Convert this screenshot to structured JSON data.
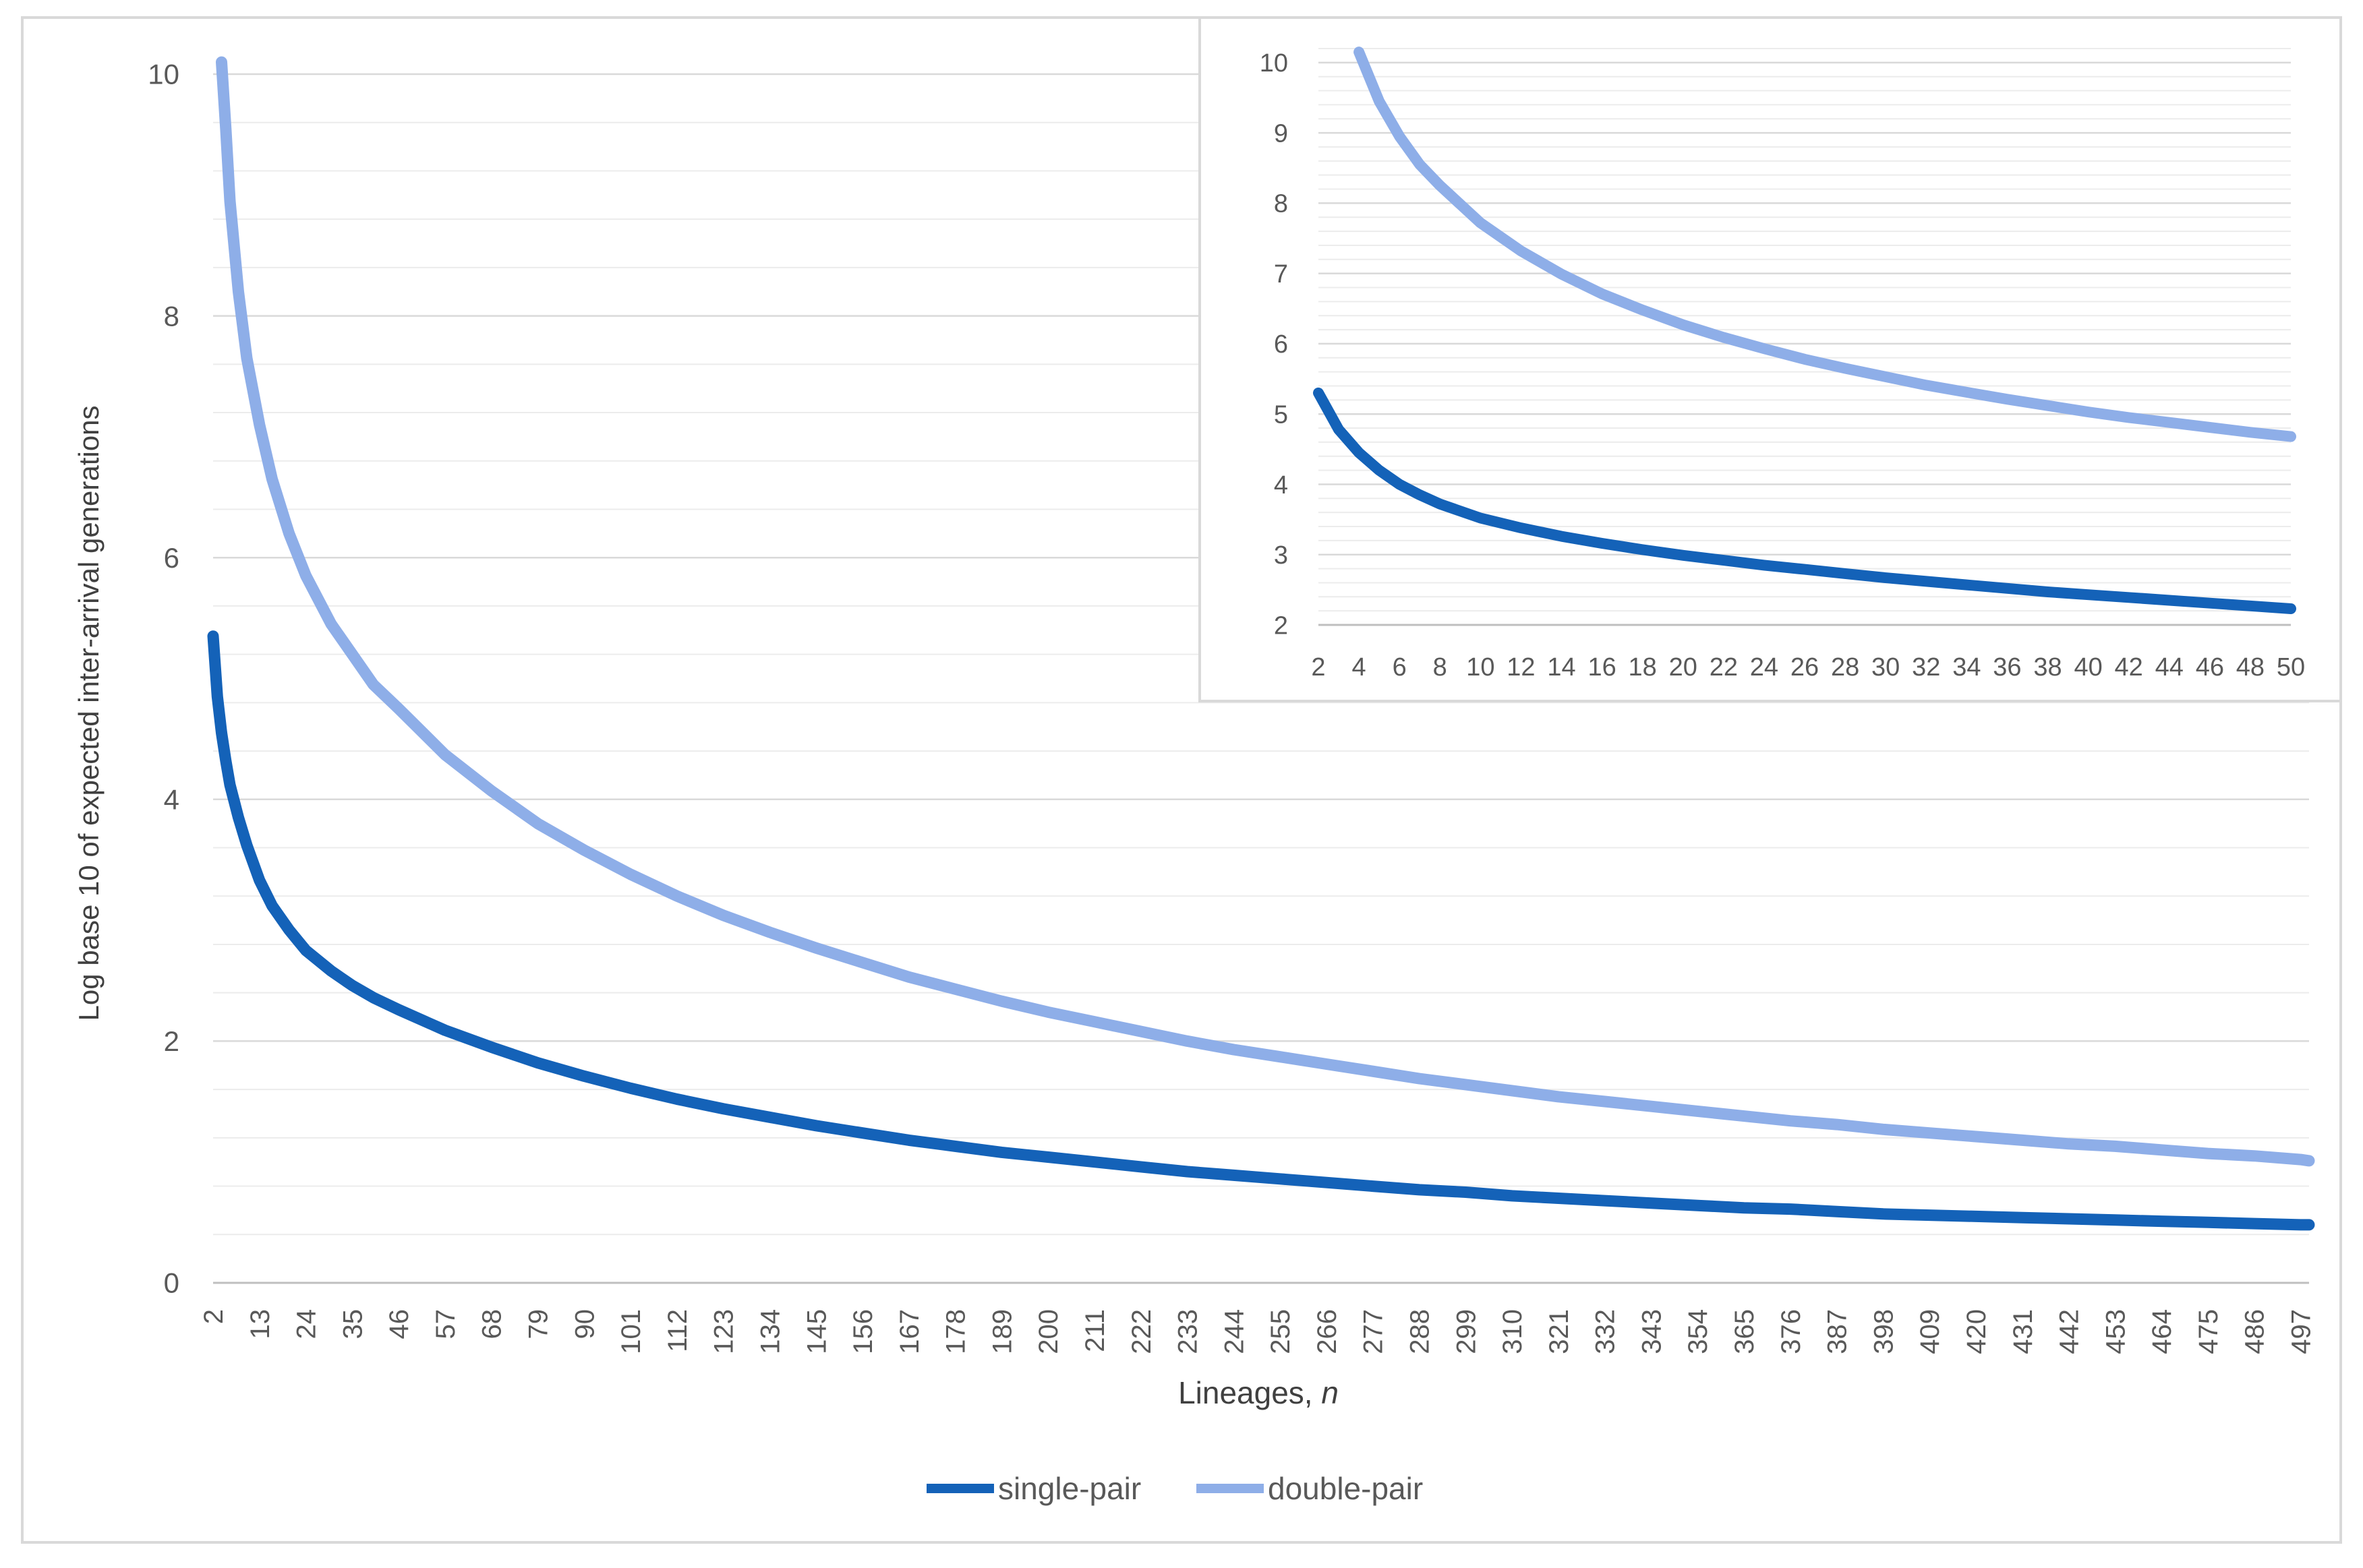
{
  "chart_data": [
    {
      "type": "line",
      "title": "",
      "xlabel": "Lineages, ",
      "xlabel_italic": "n",
      "ylabel": "Log base 10 of expected inter-arrival generations",
      "x_range": [
        2,
        499
      ],
      "ylim": [
        0,
        10
      ],
      "y_ticks": [
        "0",
        "2",
        "4",
        "6",
        "8",
        "10"
      ],
      "y_minor_step": 0.4,
      "x_tick_labels": [
        "2",
        "13",
        "24",
        "35",
        "46",
        "57",
        "68",
        "79",
        "90",
        "101",
        "112",
        "123",
        "134",
        "145",
        "156",
        "167",
        "178",
        "189",
        "200",
        "211",
        "222",
        "233",
        "244",
        "255",
        "266",
        "277",
        "288",
        "299",
        "310",
        "321",
        "332",
        "343",
        "354",
        "365",
        "376",
        "387",
        "398",
        "409",
        "420",
        "431",
        "442",
        "453",
        "464",
        "475",
        "486",
        "497"
      ],
      "grid": true,
      "legend_position": "bottom",
      "series": [
        {
          "name": "single-pair",
          "color": "#1462b8",
          "x": [
            2,
            3,
            4,
            5,
            6,
            8,
            10,
            13,
            16,
            20,
            24,
            30,
            35,
            40,
            46,
            57,
            68,
            79,
            90,
            101,
            112,
            123,
            134,
            145,
            156,
            167,
            178,
            189,
            200,
            211,
            222,
            233,
            244,
            255,
            266,
            277,
            288,
            299,
            310,
            321,
            332,
            343,
            354,
            365,
            376,
            387,
            398,
            409,
            420,
            431,
            442,
            453,
            464,
            475,
            486,
            497,
            499
          ],
          "values": [
            5.35,
            4.85,
            4.55,
            4.32,
            4.12,
            3.85,
            3.62,
            3.33,
            3.12,
            2.92,
            2.75,
            2.58,
            2.46,
            2.36,
            2.26,
            2.09,
            1.95,
            1.82,
            1.71,
            1.61,
            1.52,
            1.44,
            1.37,
            1.3,
            1.24,
            1.18,
            1.13,
            1.08,
            1.04,
            1.0,
            0.96,
            0.92,
            0.89,
            0.86,
            0.83,
            0.8,
            0.77,
            0.75,
            0.72,
            0.7,
            0.68,
            0.66,
            0.64,
            0.62,
            0.61,
            0.59,
            0.57,
            0.56,
            0.55,
            0.54,
            0.53,
            0.52,
            0.51,
            0.5,
            0.49,
            0.48,
            0.48
          ]
        },
        {
          "name": "double-pair",
          "color": "#8eaee8",
          "x": [
            4,
            5,
            6,
            8,
            10,
            13,
            16,
            20,
            24,
            30,
            35,
            40,
            46,
            57,
            68,
            79,
            90,
            101,
            112,
            123,
            134,
            145,
            156,
            167,
            178,
            189,
            200,
            211,
            222,
            233,
            244,
            255,
            266,
            277,
            288,
            299,
            310,
            321,
            332,
            343,
            354,
            365,
            376,
            387,
            398,
            409,
            420,
            431,
            442,
            453,
            464,
            475,
            486,
            497,
            499
          ],
          "values": [
            10.1,
            9.55,
            8.95,
            8.2,
            7.65,
            7.1,
            6.65,
            6.2,
            5.85,
            5.45,
            5.2,
            4.95,
            4.75,
            4.37,
            4.07,
            3.8,
            3.58,
            3.38,
            3.2,
            3.04,
            2.9,
            2.77,
            2.65,
            2.53,
            2.43,
            2.33,
            2.24,
            2.16,
            2.08,
            2.0,
            1.93,
            1.87,
            1.81,
            1.75,
            1.69,
            1.64,
            1.59,
            1.54,
            1.5,
            1.46,
            1.42,
            1.38,
            1.34,
            1.31,
            1.27,
            1.24,
            1.21,
            1.18,
            1.15,
            1.13,
            1.1,
            1.07,
            1.05,
            1.02,
            1.01
          ]
        }
      ]
    },
    {
      "type": "line",
      "title": "",
      "xlabel": "",
      "ylabel": "",
      "x_range": [
        2,
        50
      ],
      "ylim": [
        2,
        10.2
      ],
      "y_ticks": [
        "2",
        "3",
        "4",
        "5",
        "6",
        "7",
        "8",
        "9",
        "10"
      ],
      "y_minor_step": 0.2,
      "x_tick_labels": [
        "2",
        "4",
        "6",
        "8",
        "10",
        "12",
        "14",
        "16",
        "18",
        "20",
        "22",
        "24",
        "26",
        "28",
        "30",
        "32",
        "34",
        "36",
        "38",
        "40",
        "42",
        "44",
        "46",
        "48",
        "50"
      ],
      "grid": true,
      "series": [
        {
          "name": "single-pair",
          "color": "#1462b8",
          "x": [
            2,
            3,
            4,
            5,
            6,
            7,
            8,
            10,
            12,
            14,
            16,
            18,
            20,
            22,
            24,
            26,
            28,
            30,
            32,
            34,
            36,
            38,
            40,
            42,
            44,
            46,
            48,
            50
          ],
          "values": [
            5.3,
            4.78,
            4.45,
            4.2,
            4.0,
            3.85,
            3.72,
            3.52,
            3.38,
            3.26,
            3.16,
            3.07,
            2.99,
            2.92,
            2.85,
            2.79,
            2.73,
            2.67,
            2.62,
            2.57,
            2.52,
            2.47,
            2.43,
            2.39,
            2.35,
            2.31,
            2.27,
            2.23
          ]
        },
        {
          "name": "double-pair",
          "color": "#8eaee8",
          "x": [
            4,
            5,
            6,
            7,
            8,
            10,
            12,
            14,
            16,
            18,
            20,
            22,
            24,
            26,
            28,
            30,
            32,
            34,
            36,
            38,
            40,
            42,
            44,
            46,
            48,
            50
          ],
          "values": [
            10.15,
            9.45,
            8.95,
            8.55,
            8.25,
            7.72,
            7.32,
            6.99,
            6.71,
            6.48,
            6.27,
            6.09,
            5.93,
            5.78,
            5.65,
            5.53,
            5.41,
            5.31,
            5.21,
            5.12,
            5.03,
            4.95,
            4.88,
            4.81,
            4.74,
            4.68
          ]
        }
      ]
    }
  ],
  "legend": [
    {
      "name": "single-pair",
      "color": "#1462b8"
    },
    {
      "name": "double-pair",
      "color": "#8eaee8"
    }
  ],
  "colors": {
    "border": "#d9d9d9",
    "major_grid": "#d9d9d9",
    "minor_grid": "#ececec",
    "tick_text": "#595959",
    "axis_title": "#404040"
  }
}
